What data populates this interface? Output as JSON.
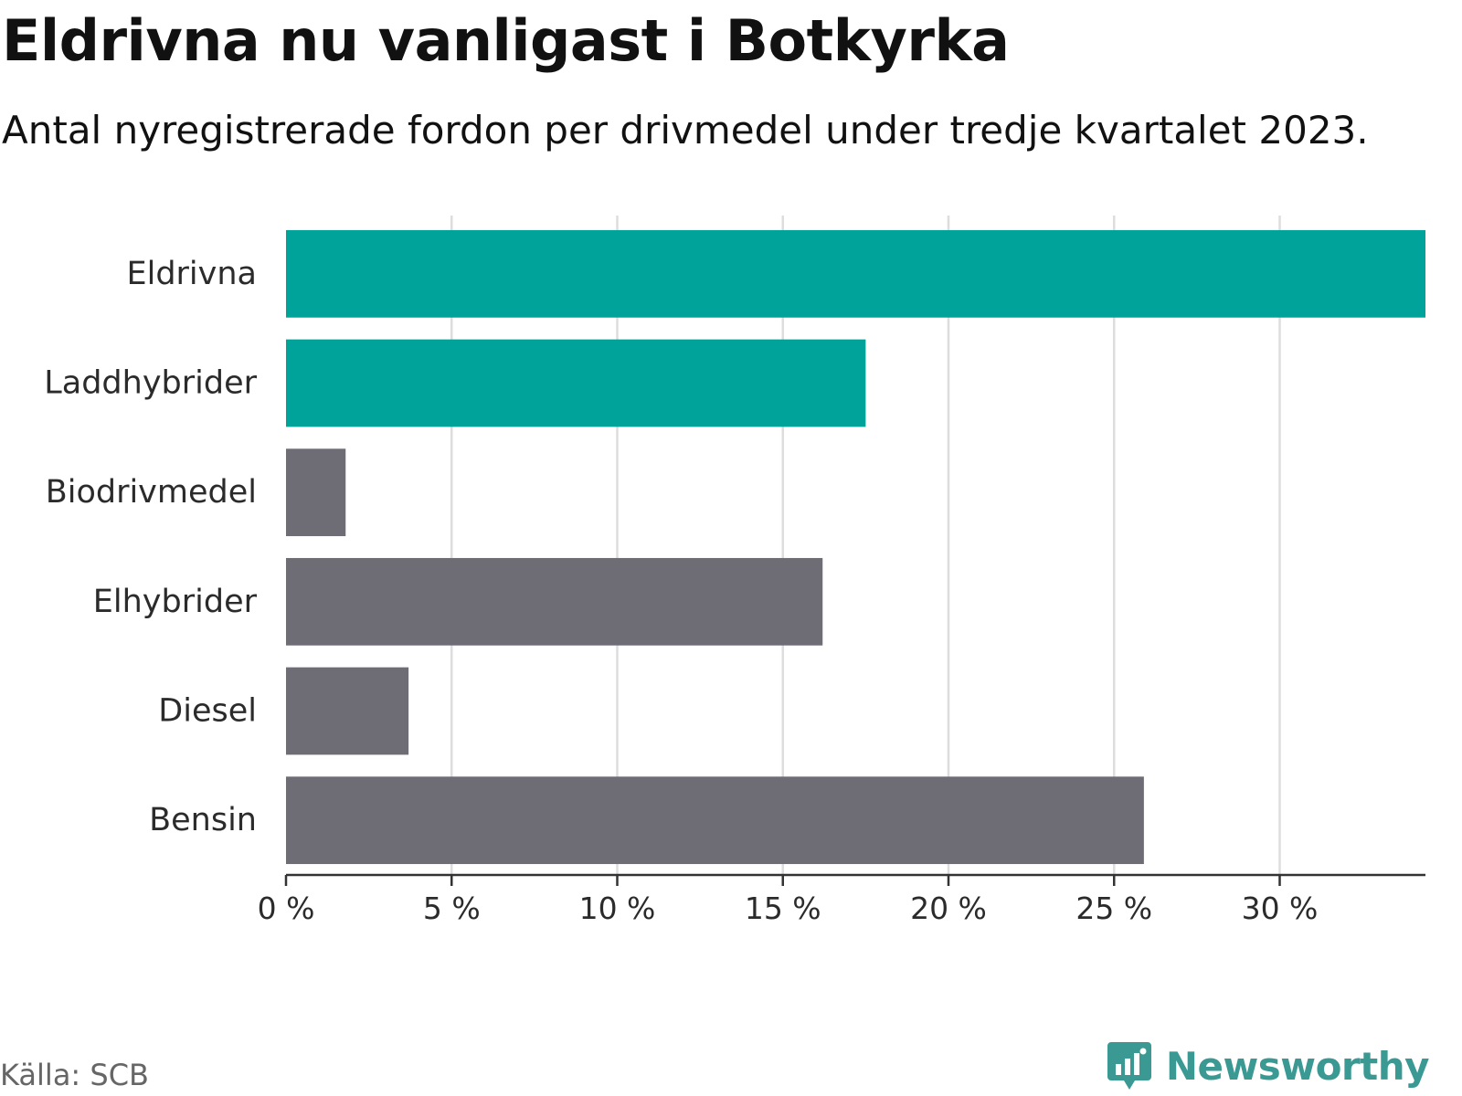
{
  "header": {
    "title": "Eldrivna nu vanligast i Botkyrka",
    "subtitle": "Antal nyregistrerade fordon per drivmedel under tredje kvartalet 2023."
  },
  "footer": {
    "source": "Källa: SCB",
    "brand": "Newsworthy"
  },
  "colors": {
    "highlight": "#00a39a",
    "default": "#6e6d75",
    "grid": "#dddddd",
    "axis": "#333333",
    "brand": "#3a9a93"
  },
  "chart_data": {
    "type": "bar",
    "orientation": "horizontal",
    "title": "Eldrivna nu vanligast i Botkyrka",
    "subtitle": "Antal nyregistrerade fordon per drivmedel under tredje kvartalet 2023.",
    "xlabel": "",
    "ylabel": "",
    "unit": "%",
    "xlim": [
      0,
      34.4
    ],
    "ticks": [
      0,
      5,
      10,
      15,
      20,
      25,
      30
    ],
    "tick_labels": [
      "0 %",
      "5 %",
      "10 %",
      "15 %",
      "20 %",
      "25 %",
      "30 %"
    ],
    "grid": true,
    "categories": [
      "Eldrivna",
      "Laddhybrider",
      "Biodrivmedel",
      "Elhybrider",
      "Diesel",
      "Bensin"
    ],
    "values": [
      34.4,
      17.5,
      1.8,
      16.2,
      3.7,
      25.9
    ],
    "highlighted": [
      true,
      true,
      false,
      false,
      false,
      false
    ]
  }
}
